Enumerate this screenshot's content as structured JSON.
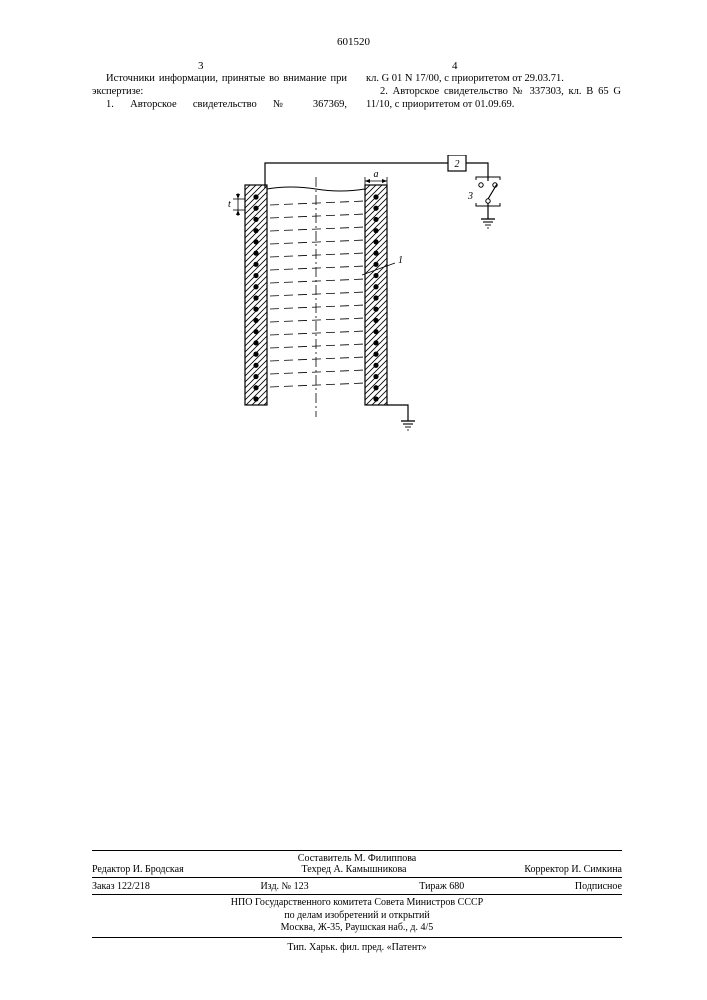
{
  "header": {
    "doc_number": "601520",
    "page_left": "3",
    "page_right": "4"
  },
  "text": {
    "col_left_p1": "Источники информации, принятые во внимание при экспертизе:",
    "col_left_p2": "1. Авторское свидетельство № 367369,",
    "col_right_p1": "кл. G 01 N 17/00, с приоритетом от 29.03.71.",
    "col_right_p2": "2. Авторское свидетельство № 337303, кл. B 65 G 11/10, с приоритетом от 01.09.69."
  },
  "figure": {
    "box_label_2": "2",
    "label_3": "3",
    "label_1": "1",
    "label_a": "a",
    "label_t": "t",
    "colors": {
      "stroke": "#000000",
      "hatch": "#000000",
      "fill": "#ffffff"
    },
    "coil_rows": 19,
    "dash_rows": 15
  },
  "footer": {
    "compiler": "Составитель М. Филиппова",
    "editor": "Редактор И. Бродская",
    "techred": "Техред А. Камышникова",
    "corrector": "Корректор И. Симкина",
    "order": "Заказ 122/218",
    "izd": "Изд. № 123",
    "tirazh": "Тираж 680",
    "podpis": "Подписное",
    "org1": "НПО Государственного комитета Совета Министров СССР",
    "org2": "по делам изобретений и открытий",
    "org3": "Москва, Ж-35, Раушская наб., д. 4/5",
    "typo": "Тип. Харьк. фил. пред. «Патент»"
  }
}
